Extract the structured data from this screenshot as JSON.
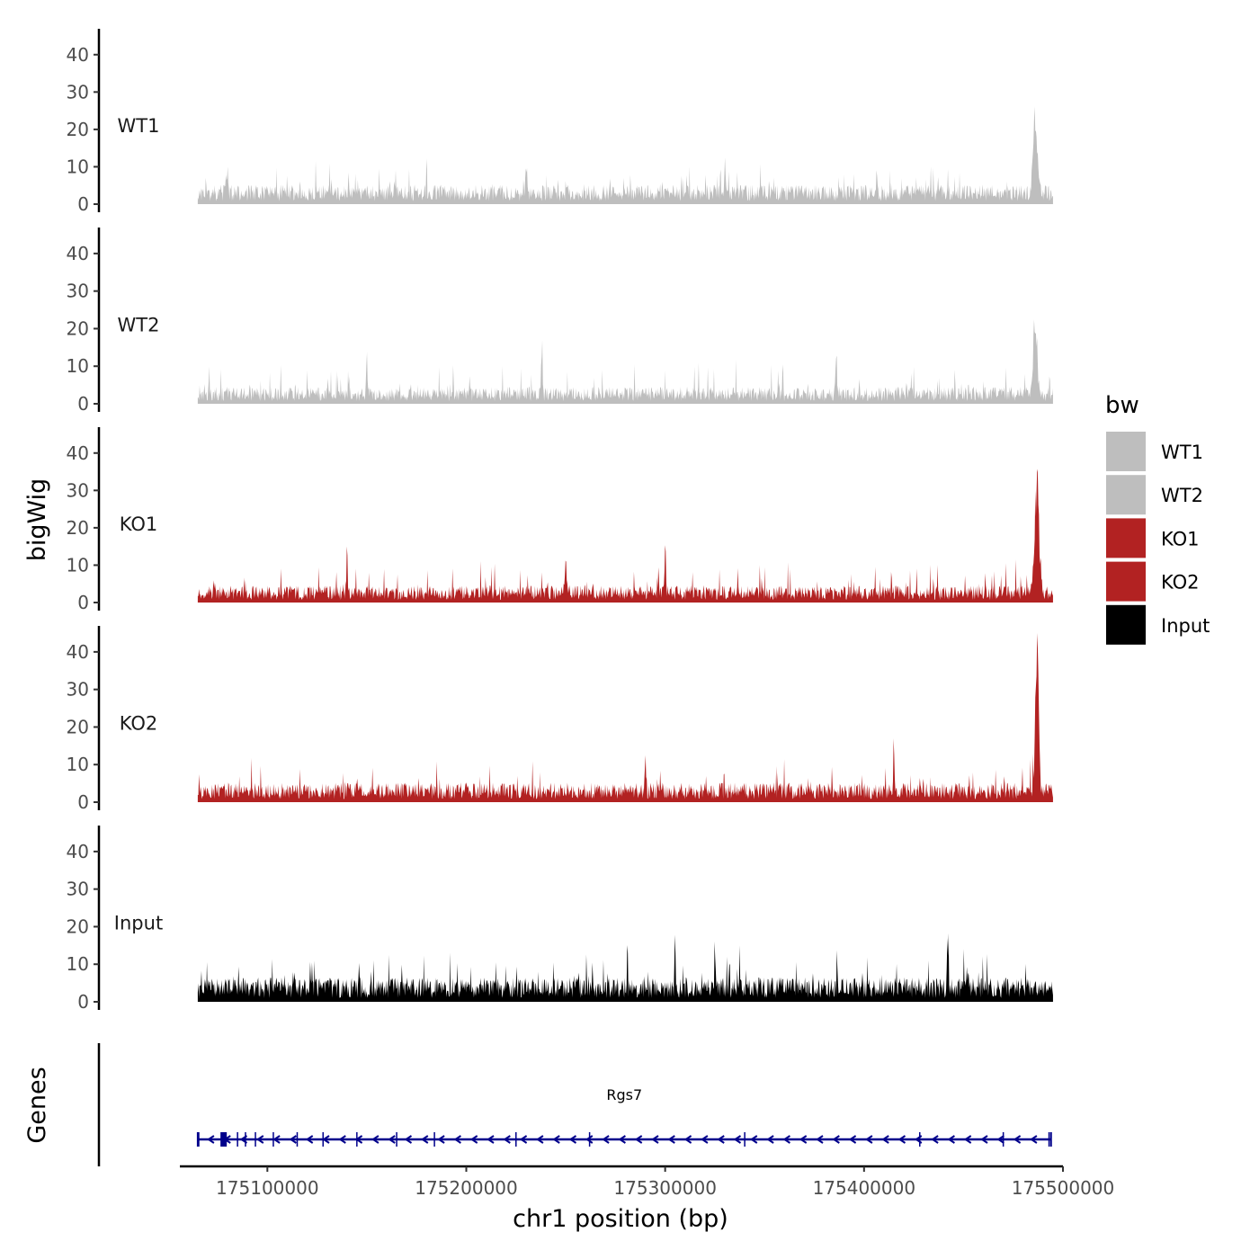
{
  "chart_data": {
    "type": "area",
    "ylabel": "bigWig",
    "xlabel": "chr1 position (bp)",
    "ylim": [
      0,
      45
    ],
    "y_ticks": [
      0,
      10,
      20,
      30,
      40
    ],
    "xlim": [
      175056000,
      175500000
    ],
    "x_ticks": [
      175100000,
      175200000,
      175300000,
      175400000,
      175500000
    ],
    "x_tick_labels": [
      "175100000",
      "175200000",
      "175300000",
      "175400000",
      "175500000"
    ],
    "data_range": [
      175065000,
      175495000
    ],
    "legend": {
      "title": "bw",
      "position": "right",
      "entries": [
        {
          "label": "WT1",
          "color": "#bebebe"
        },
        {
          "label": "WT2",
          "color": "#bebebe"
        },
        {
          "label": "KO1",
          "color": "#b22222"
        },
        {
          "label": "KO2",
          "color": "#b22222"
        },
        {
          "label": "Input",
          "color": "#000000"
        }
      ]
    },
    "series": [
      {
        "name": "WT1",
        "color": "#bebebe",
        "baseline": 4,
        "noise": 5,
        "seed": 11,
        "peaks": [
          {
            "x": 175486000,
            "height": 28,
            "width": 1500
          },
          {
            "x": 175080000,
            "height": 8,
            "width": 500
          },
          {
            "x": 175230000,
            "height": 9,
            "width": 500
          },
          {
            "x": 175330000,
            "height": 10,
            "width": 500
          }
        ]
      },
      {
        "name": "WT2",
        "color": "#bebebe",
        "baseline": 3.5,
        "noise": 5,
        "seed": 23,
        "peaks": [
          {
            "x": 175486000,
            "height": 23,
            "width": 1500
          },
          {
            "x": 175238000,
            "height": 18,
            "width": 400
          },
          {
            "x": 175150000,
            "height": 10,
            "width": 500
          },
          {
            "x": 175386000,
            "height": 13,
            "width": 500
          }
        ]
      },
      {
        "name": "KO1",
        "color": "#b22222",
        "baseline": 3.5,
        "noise": 5,
        "seed": 37,
        "peaks": [
          {
            "x": 175487000,
            "height": 37,
            "width": 1600
          },
          {
            "x": 175140000,
            "height": 15,
            "width": 400
          },
          {
            "x": 175250000,
            "height": 11,
            "width": 500
          },
          {
            "x": 175300000,
            "height": 13,
            "width": 500
          }
        ]
      },
      {
        "name": "KO2",
        "color": "#b22222",
        "baseline": 4,
        "noise": 5,
        "seed": 53,
        "peaks": [
          {
            "x": 175487000,
            "height": 43,
            "width": 1200
          },
          {
            "x": 175415000,
            "height": 19,
            "width": 400
          },
          {
            "x": 175290000,
            "height": 11,
            "width": 500
          }
        ]
      },
      {
        "name": "Input",
        "color": "#000000",
        "baseline": 5,
        "noise": 6,
        "seed": 71,
        "peaks": [
          {
            "x": 175442000,
            "height": 19,
            "width": 400
          },
          {
            "x": 175305000,
            "height": 14,
            "width": 400
          },
          {
            "x": 175325000,
            "height": 14,
            "width": 400
          }
        ]
      }
    ],
    "genes_track": {
      "label": "Genes",
      "gene": "Rgs7",
      "color": "#00008b",
      "start": 175065000,
      "end": 175494000,
      "strand": "-",
      "exons": [
        175065500,
        175078000,
        175079000,
        175085000,
        175089000,
        175094000,
        175103000,
        175115000,
        175128000,
        175145000,
        175165000,
        175184000,
        175225000,
        175262000,
        175340000,
        175428000,
        175470000,
        175493000
      ]
    }
  }
}
